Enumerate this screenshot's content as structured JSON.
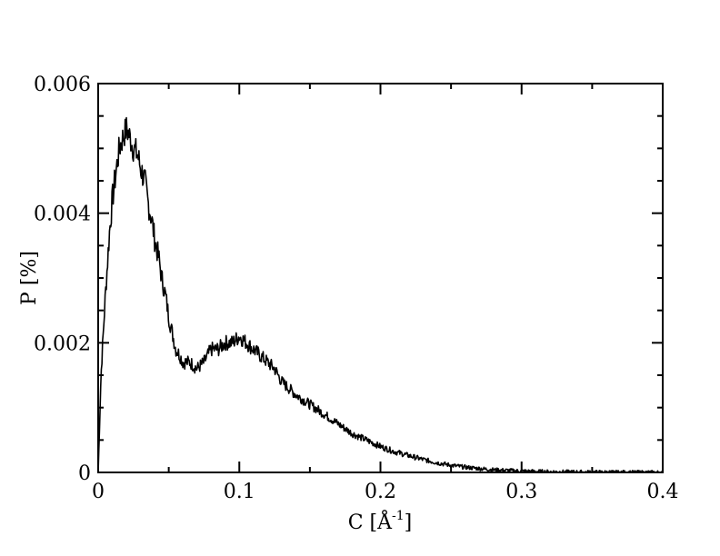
{
  "chart_data": {
    "type": "line",
    "xlabel": "C [Å-1]",
    "xlabel_main": "C [Å",
    "xlabel_sup": "-1",
    "xlabel_close": "]",
    "ylabel": "P [%]",
    "xlim": [
      0,
      0.4
    ],
    "ylim": [
      0,
      0.006
    ],
    "grid": false,
    "x_ticks": [
      0,
      0.1,
      0.2,
      0.3,
      0.4
    ],
    "x_tick_labels": [
      "0",
      "0.1",
      "0.2",
      "0.3",
      "0.4"
    ],
    "y_ticks": [
      0,
      0.002,
      0.004,
      0.006
    ],
    "y_tick_labels": [
      "0",
      "0.002",
      "0.004",
      "0.006"
    ],
    "line_color": "#000000",
    "series": [
      {
        "x": [
          0,
          0.002,
          0.005,
          0.008,
          0.01,
          0.013,
          0.015,
          0.018,
          0.02,
          0.022,
          0.025,
          0.028,
          0.03,
          0.033,
          0.035,
          0.038,
          0.04,
          0.043,
          0.045,
          0.048,
          0.05,
          0.053,
          0.055,
          0.058,
          0.06,
          0.065,
          0.07,
          0.075,
          0.08,
          0.085,
          0.09,
          0.095,
          0.1,
          0.105,
          0.11,
          0.115,
          0.12,
          0.125,
          0.13,
          0.14,
          0.15,
          0.16,
          0.17,
          0.18,
          0.19,
          0.2,
          0.21,
          0.22,
          0.23,
          0.24,
          0.25,
          0.26,
          0.27,
          0.28,
          0.29,
          0.3,
          0.31,
          0.32,
          0.33,
          0.34,
          0.35,
          0.36,
          0.37,
          0.38,
          0.39,
          0.4
        ],
        "y": [
          0,
          0.0015,
          0.0027,
          0.0037,
          0.0042,
          0.0047,
          0.005,
          0.0052,
          0.0053,
          0.0052,
          0.005,
          0.0049,
          0.0047,
          0.0045,
          0.0042,
          0.0039,
          0.0036,
          0.0033,
          0.003,
          0.0027,
          0.0024,
          0.0021,
          0.0019,
          0.0018,
          0.0017,
          0.0017,
          0.0016,
          0.0017,
          0.0019,
          0.0019,
          0.002,
          0.002,
          0.0021,
          0.002,
          0.0019,
          0.0018,
          0.0017,
          0.0016,
          0.0014,
          0.0012,
          0.00105,
          0.0009,
          0.00075,
          0.0006,
          0.0005,
          0.0004,
          0.00032,
          0.00026,
          0.0002,
          0.00015,
          0.00011,
          8e-05,
          6e-05,
          4e-05,
          3e-05,
          2e-05,
          1.5e-05,
          1e-05,
          8e-06,
          6e-06,
          4e-06,
          3e-06,
          2e-06,
          1e-06,
          1e-06,
          0
        ]
      }
    ]
  }
}
